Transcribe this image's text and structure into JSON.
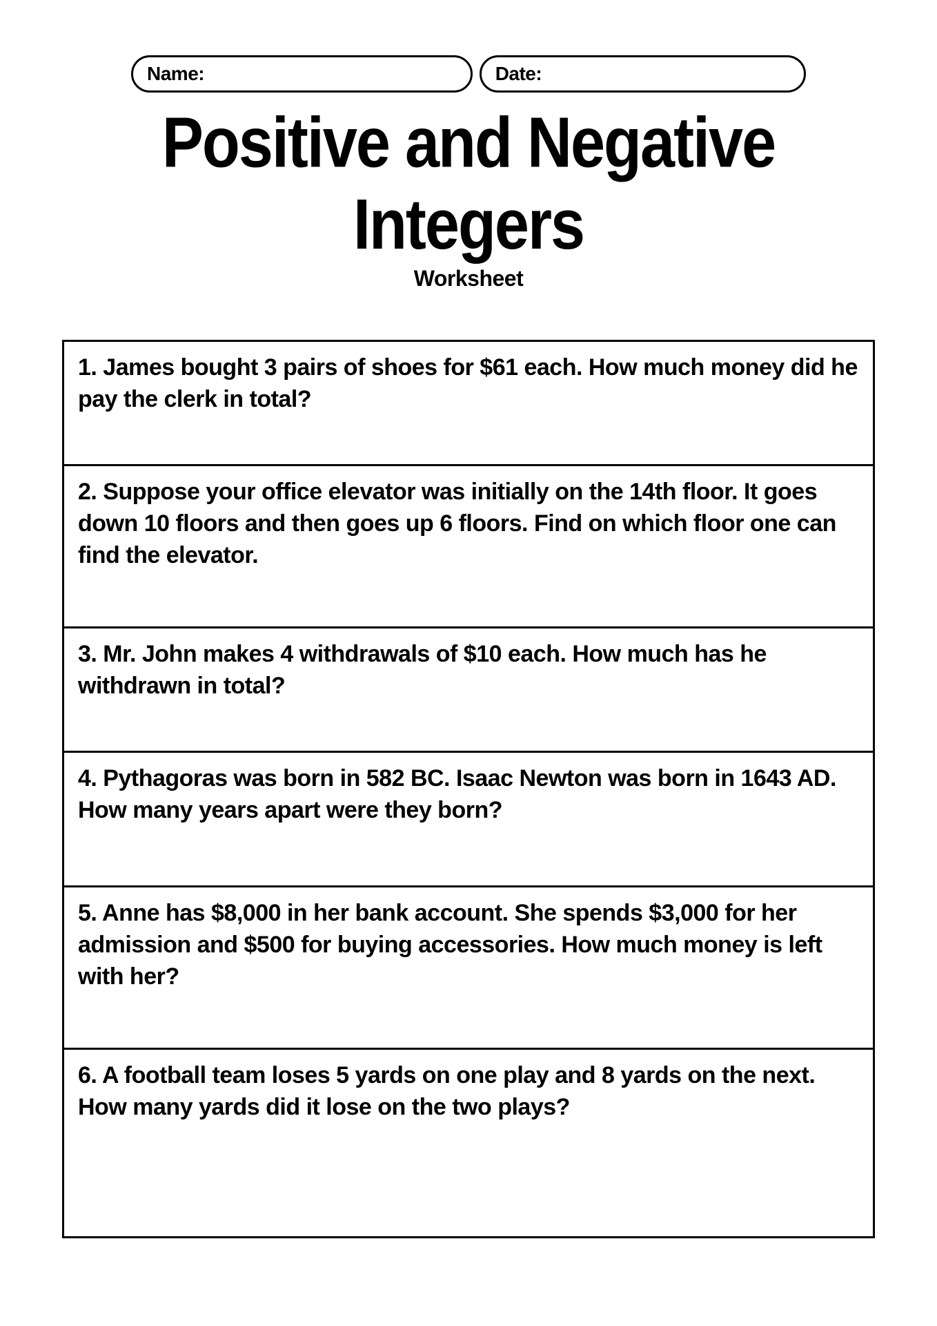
{
  "header": {
    "name_label": "Name:",
    "date_label": "Date:"
  },
  "title": "Positive and Negative Integers",
  "subtitle": "Worksheet",
  "questions": [
    "1. James bought 3 pairs of shoes for $61 each. How much money did he pay the clerk in total?",
    "2. Suppose your office elevator was initially on the 14th floor. It goes down 10 floors and then goes up 6 floors. Find on which floor one can find the elevator.",
    "3. Mr. John makes 4 withdrawals of $10 each. How much has he withdrawn in total?",
    "4. Pythagoras was born in 582 BC. Isaac Newton was born in 1643 AD. How many years apart were they born?",
    "5. Anne has $8,000 in her bank account. She spends $3,000 for her admission and $500 for buying accessories. How much money is left with her?",
    "6. A football team loses 5 yards on one play and 8 yards on the next. How many yards did it lose on the two plays?"
  ],
  "styling": {
    "page_background": "#ffffff",
    "text_color": "#000000",
    "border_color": "#000000",
    "border_width": 3,
    "title_font_size": 90,
    "subtitle_font_size": 32,
    "question_font_size": 34,
    "field_font_size": 28
  }
}
